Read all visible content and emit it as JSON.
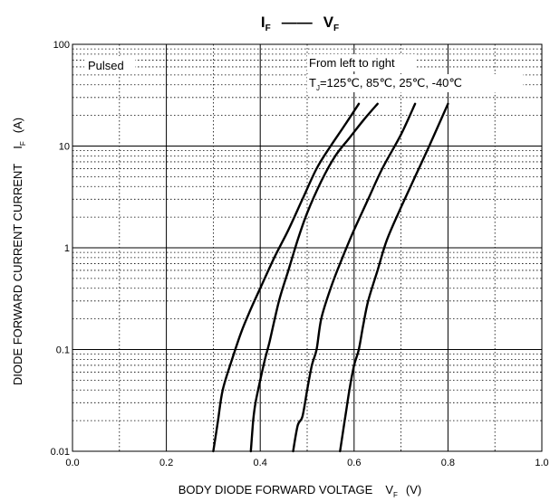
{
  "chart_data": {
    "type": "line",
    "title": {
      "main1": "I",
      "sub1": "F",
      "dash": "——",
      "main2": "V",
      "sub2": "F"
    },
    "xlabel": {
      "text": "BODY DIODE FORWARD VOLTAGE",
      "symbol": "V",
      "sub": "F",
      "unit": "(V)"
    },
    "ylabel": {
      "text": "DIODE FORWARD CURRENT CURRENT",
      "symbol": "I",
      "sub": "F",
      "unit": "(A)"
    },
    "xlim": [
      0.0,
      1.0
    ],
    "ylim": [
      0.01,
      100
    ],
    "yscale": "log",
    "grid": true,
    "x_tick_labels": [
      "0.0",
      "0.2",
      "0.4",
      "0.6",
      "0.8",
      "1.0"
    ],
    "y_tick_labels": [
      "0.01",
      "0.1",
      "1",
      "10",
      "100"
    ],
    "annotations": {
      "pulsed": "Pulsed",
      "order": "From left to right",
      "tj_symbol": "T",
      "tj_sub": "J",
      "temps": "=125℃, 85℃, 25℃, -40℃"
    },
    "series": [
      {
        "x": [
          0.3,
          0.31,
          0.32,
          0.34,
          0.36,
          0.38,
          0.4,
          0.43,
          0.46,
          0.49,
          0.52,
          0.55,
          0.58,
          0.61
        ],
        "y": [
          0.01,
          0.02,
          0.04,
          0.08,
          0.15,
          0.25,
          0.4,
          0.8,
          1.5,
          3,
          6,
          10,
          16,
          26
        ]
      },
      {
        "x": [
          0.38,
          0.385,
          0.39,
          0.4,
          0.41,
          0.42,
          0.44,
          0.46,
          0.48,
          0.5,
          0.53,
          0.56,
          0.59,
          0.62,
          0.65
        ],
        "y": [
          0.01,
          0.02,
          0.03,
          0.05,
          0.08,
          0.12,
          0.3,
          0.6,
          1.2,
          2.2,
          4.5,
          8,
          12,
          18,
          26
        ]
      },
      {
        "x": [
          0.47,
          0.48,
          0.49,
          0.5,
          0.51,
          0.52,
          0.53,
          0.55,
          0.57,
          0.6,
          0.63,
          0.66,
          0.7,
          0.73
        ],
        "y": [
          0.01,
          0.018,
          0.022,
          0.04,
          0.07,
          0.1,
          0.2,
          0.4,
          0.7,
          1.5,
          3,
          6,
          13,
          26
        ]
      },
      {
        "x": [
          0.57,
          0.58,
          0.59,
          0.6,
          0.61,
          0.62,
          0.63,
          0.65,
          0.67,
          0.7,
          0.73,
          0.76,
          0.8
        ],
        "y": [
          0.01,
          0.02,
          0.04,
          0.07,
          0.1,
          0.18,
          0.3,
          0.6,
          1.2,
          2.5,
          5,
          10,
          26
        ]
      }
    ]
  }
}
